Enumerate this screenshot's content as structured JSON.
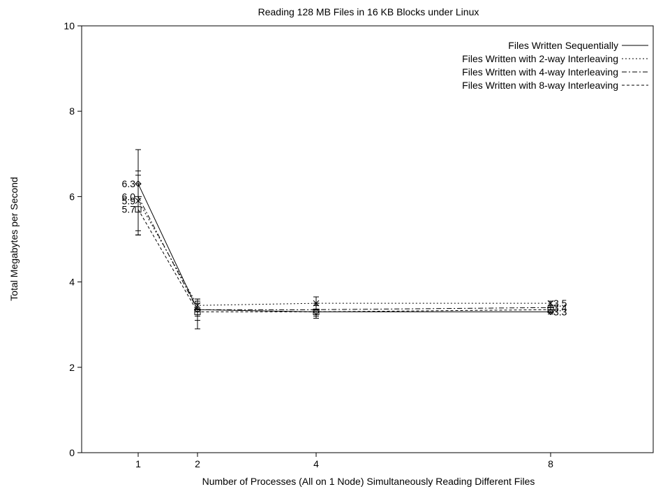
{
  "chart_data": {
    "type": "line",
    "title": "Reading 128 MB Files in 16 KB Blocks under Linux",
    "xlabel": "Number of Processes (All on 1 Node) Simultaneously Reading Different Files",
    "ylabel": "Total Megabytes per Second",
    "x": [
      1,
      2,
      4,
      8
    ],
    "x_tick_labels": [
      "1",
      "2",
      "4",
      "8"
    ],
    "ylim": [
      0,
      10
    ],
    "y_ticks": [
      0,
      2,
      4,
      6,
      8,
      10
    ],
    "y_tick_labels": [
      "0",
      "2",
      "4",
      "6",
      "8",
      "10"
    ],
    "grid": false,
    "legend_position": "top-right",
    "series": [
      {
        "name": "Files Written Sequentially",
        "values": [
          6.3,
          3.35,
          3.3,
          3.3
        ],
        "marker": "diamond",
        "dash": "solid",
        "err_low": [
          5.1,
          3.1,
          3.15,
          3.25
        ],
        "err_high": [
          7.1,
          3.6,
          3.45,
          3.35
        ]
      },
      {
        "name": "Files Written with 2-way Interleaving",
        "values": [
          5.9,
          3.45,
          3.5,
          3.5
        ],
        "marker": "x",
        "dash": "dotted",
        "err_low": [
          5.1,
          3.3,
          3.35,
          3.45
        ],
        "err_high": [
          6.5,
          3.55,
          3.65,
          3.55
        ]
      },
      {
        "name": "Files Written with 4-way Interleaving",
        "values": [
          6.0,
          3.35,
          3.35,
          3.4
        ],
        "marker": "plus",
        "dash": "dashdot",
        "err_low": [
          5.2,
          3.2,
          3.2,
          3.35
        ],
        "err_high": [
          6.6,
          3.5,
          3.5,
          3.45
        ]
      },
      {
        "name": "Files Written with 8-way Interleaving",
        "values": [
          5.7,
          3.3,
          3.3,
          3.35
        ],
        "marker": "square",
        "dash": "dashed",
        "err_low": [
          5.1,
          2.9,
          3.15,
          3.3
        ],
        "err_high": [
          6.3,
          3.6,
          3.45,
          3.45
        ]
      }
    ],
    "annotations": [
      {
        "text": "6.3",
        "x": 1,
        "y": 6.3,
        "side": "left"
      },
      {
        "text": "6.0",
        "x": 1,
        "y": 6.0,
        "side": "left"
      },
      {
        "text": "5.9",
        "x": 1,
        "y": 5.9,
        "side": "left"
      },
      {
        "text": "5.7",
        "x": 1,
        "y": 5.7,
        "side": "left"
      },
      {
        "text": "3.5",
        "x": 8,
        "y": 3.5,
        "side": "right"
      },
      {
        "text": "3.4",
        "x": 8,
        "y": 3.4,
        "side": "right"
      },
      {
        "text": "3.3",
        "x": 8,
        "y": 3.3,
        "side": "right"
      }
    ]
  }
}
